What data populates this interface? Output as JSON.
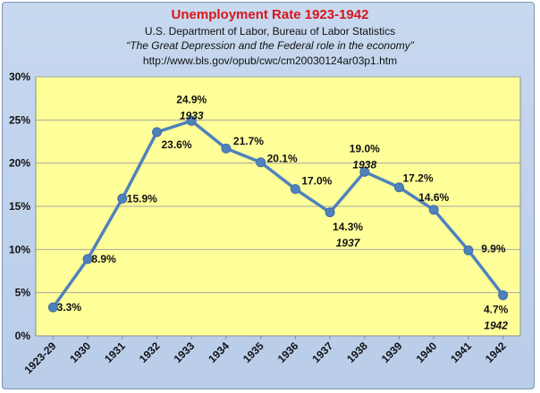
{
  "chart_data": {
    "type": "line",
    "title": "Unemployment Rate 1923-1942",
    "subtitle_lines": [
      "U.S. Department of Labor, Bureau of Labor Statistics",
      "“The Great Depression and the Federal role in the economy”",
      "http://www.bls.gov/opub/cwc/cm20030124ar03p1.htm"
    ],
    "categories": [
      "1923-29",
      "1930",
      "1931",
      "1932",
      "1933",
      "1934",
      "1935",
      "1936",
      "1937",
      "1938",
      "1939",
      "1940",
      "1941",
      "1942"
    ],
    "series": [
      {
        "values": [
          3.3,
          8.9,
          15.9,
          23.6,
          24.9,
          21.7,
          20.1,
          17.0,
          14.3,
          19.0,
          17.2,
          14.6,
          9.9,
          4.7
        ]
      }
    ],
    "data_labels": [
      "3.3%",
      "8.9%",
      "15.9%",
      "23.6%",
      "24.9%",
      "21.7%",
      "20.1%",
      "17.0%",
      "14.3%",
      "19.0%",
      "17.2%",
      "14.6%",
      "9.9%",
      "4.7%"
    ],
    "year_annotations": [
      {
        "index": 4,
        "text": "1933"
      },
      {
        "index": 8,
        "text": "1937"
      },
      {
        "index": 9,
        "text": "1938"
      },
      {
        "index": 13,
        "text": "1942"
      }
    ],
    "y_ticks": [
      "0%",
      "5%",
      "10%",
      "15%",
      "20%",
      "25%",
      "30%"
    ],
    "ylim": [
      0,
      30
    ],
    "grid": true,
    "colors": {
      "line": "#4f81bd",
      "plot_background": "#ffff99",
      "frame_background": "#c6d9f1",
      "title": "#d8161b"
    }
  }
}
